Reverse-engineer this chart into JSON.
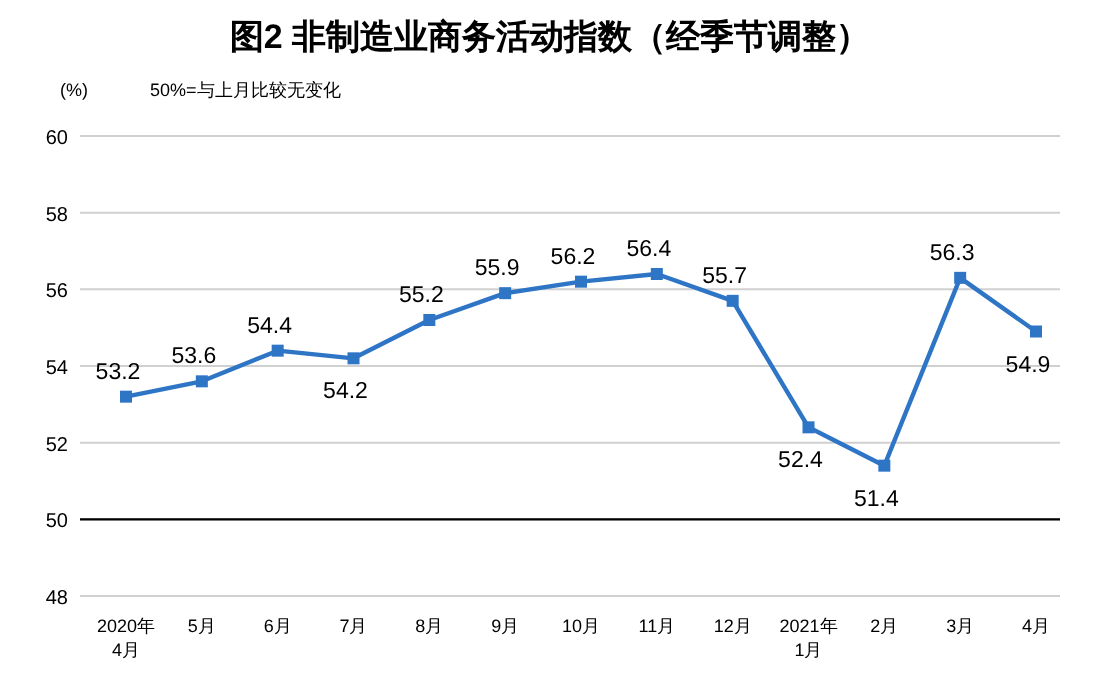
{
  "chart_data": {
    "type": "line",
    "title": "图2 非制造业商务活动指数（经季节调整）",
    "ylabel": "(%)",
    "annotations": [
      "50%=与上月比较无变化"
    ],
    "categories": [
      "2020年\n4月",
      "5月",
      "6月",
      "7月",
      "8月",
      "9月",
      "10月",
      "11月",
      "12月",
      "2021年\n1月",
      "2月",
      "3月",
      "4月"
    ],
    "series": [
      {
        "color": "#2e75c6",
        "values": [
          53.2,
          53.6,
          54.4,
          54.2,
          55.2,
          55.9,
          56.2,
          56.4,
          55.7,
          52.4,
          51.4,
          56.3,
          54.9
        ]
      }
    ],
    "ylim": [
      48,
      60
    ],
    "yticks": [
      48,
      50,
      52,
      54,
      56,
      58,
      60
    ],
    "grid": "y",
    "ref_lines": [
      {
        "axis": "y",
        "value": 50,
        "color": "#000000"
      }
    ],
    "marker": "square",
    "line_style": "solid",
    "data_labels": true
  }
}
